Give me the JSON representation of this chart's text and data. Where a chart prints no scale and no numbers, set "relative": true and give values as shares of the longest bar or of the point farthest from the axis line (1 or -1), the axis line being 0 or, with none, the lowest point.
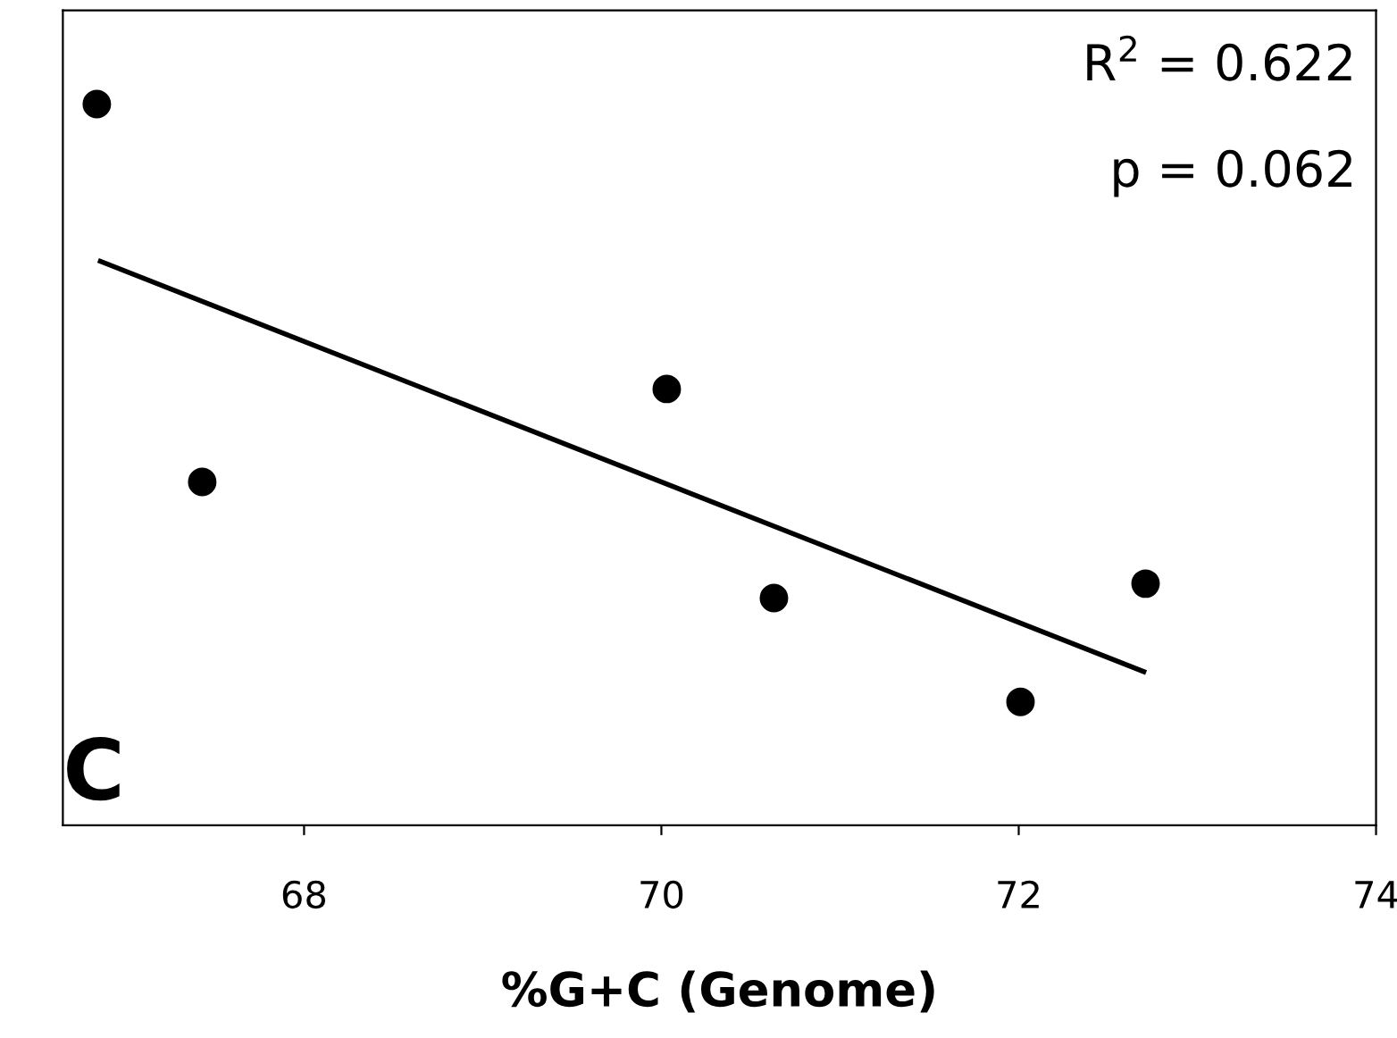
{
  "chart_data": {
    "type": "scatter",
    "relative": true,
    "xlabel": "%G+C (Genome)",
    "annotations": [
      "R$^{2}$ = 0.622",
      "p = 0.062",
      "C"
    ],
    "xlim": [
      66.65,
      74
    ],
    "xticks": [
      68,
      70,
      72,
      74
    ],
    "grid": false,
    "legend": false,
    "tick_labels": "x",
    "series": [
      {
        "color": "#000000",
        "marker": "circle",
        "x": [
          66.84,
          67.43,
          70.03,
          70.63,
          72.01,
          72.71
        ],
        "values": [
          1,
          0.476,
          0.605,
          0.315,
          0.171,
          0.335
        ]
      },
      {
        "type": "line",
        "color": "#000000",
        "marker": "none",
        "line_style": "solid",
        "x": [
          66.86,
          72.7
        ],
        "values": [
          0.782,
          0.213
        ]
      }
    ]
  }
}
